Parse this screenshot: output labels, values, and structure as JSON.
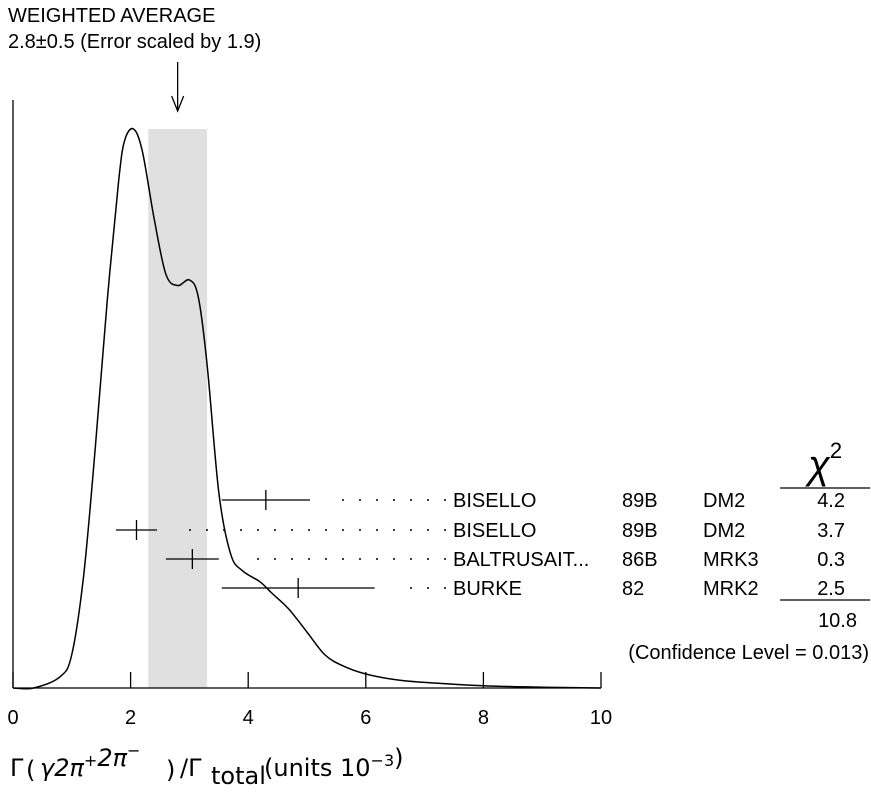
{
  "header": {
    "line1": "WEIGHTED AVERAGE",
    "line2": "2.8±0.5 (Error scaled by 1.9)"
  },
  "x_axis_label": {
    "gamma_sym": "Γ",
    "inner": "γ2π+2π−",
    "ratio_sym": "/Γ",
    "sub": "total",
    "units": "(units 10−3)"
  },
  "chi2_header": "χ2",
  "chi2_total": "10.8",
  "confidence_level": "(Confidence Level = 0.013)",
  "colors": {
    "band": "#e0e0e0",
    "ink": "#000000"
  },
  "chart_data": {
    "type": "ideogram",
    "xlim": [
      0,
      10
    ],
    "x_ticks": [
      0,
      2,
      4,
      6,
      8,
      10
    ],
    "weighted_average": {
      "value": 2.8,
      "error": 0.5,
      "scale_factor": 1.9
    },
    "band": [
      2.3,
      3.3
    ],
    "measurements": [
      {
        "author": "BISELLO",
        "year": "89B",
        "experiment": "DM2",
        "value": 4.3,
        "err_low": 0.75,
        "err_high": 0.75,
        "chi2": "4.2"
      },
      {
        "author": "BISELLO",
        "year": "89B",
        "experiment": "DM2",
        "value": 2.1,
        "err_low": 0.35,
        "err_high": 0.35,
        "chi2": "3.7"
      },
      {
        "author": "BALTRUSAIT...",
        "year": "86B",
        "experiment": "MRK3",
        "value": 3.05,
        "err_low": 0.45,
        "err_high": 0.45,
        "chi2": "0.3"
      },
      {
        "author": "BURKE",
        "year": "82",
        "experiment": "MRK2",
        "value": 4.85,
        "err_low": 1.3,
        "err_high": 1.3,
        "chi2": "2.5"
      }
    ],
    "ideogram_curve": [
      [
        0.0,
        0.0
      ],
      [
        0.35,
        0.0
      ],
      [
        0.8,
        0.02
      ],
      [
        1.0,
        0.06
      ],
      [
        1.2,
        0.2
      ],
      [
        1.4,
        0.43
      ],
      [
        1.6,
        0.69
      ],
      [
        1.8,
        0.91
      ],
      [
        1.9,
        0.98
      ],
      [
        2.05,
        1.0
      ],
      [
        2.2,
        0.96
      ],
      [
        2.4,
        0.84
      ],
      [
        2.6,
        0.74
      ],
      [
        2.8,
        0.72
      ],
      [
        3.0,
        0.73
      ],
      [
        3.15,
        0.7
      ],
      [
        3.3,
        0.58
      ],
      [
        3.5,
        0.35
      ],
      [
        3.7,
        0.24
      ],
      [
        3.9,
        0.21
      ],
      [
        4.2,
        0.19
      ],
      [
        4.4,
        0.17
      ],
      [
        4.7,
        0.14
      ],
      [
        5.0,
        0.1
      ],
      [
        5.3,
        0.06
      ],
      [
        5.6,
        0.04
      ],
      [
        6.0,
        0.025
      ],
      [
        6.5,
        0.015
      ],
      [
        7.0,
        0.01
      ],
      [
        8.0,
        0.004
      ],
      [
        9.0,
        0.0015
      ],
      [
        10.0,
        0.0
      ]
    ]
  }
}
